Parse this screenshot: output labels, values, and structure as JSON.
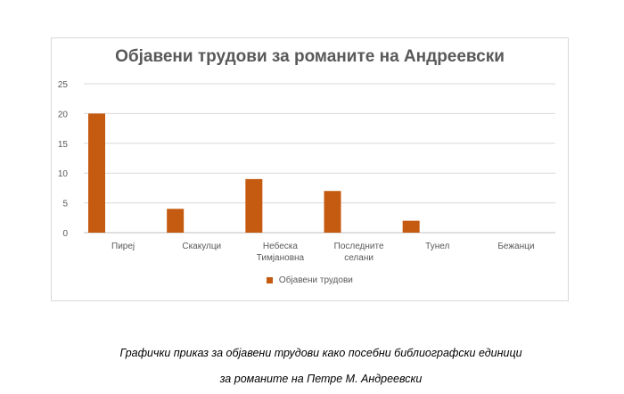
{
  "chart_data": {
    "type": "bar",
    "title": "Објавени трудови за романите на Андреевски",
    "categories": [
      [
        "Пирej"
      ],
      [
        "Скакулци"
      ],
      [
        "Небеска",
        "Тимјановна"
      ],
      [
        "Последните",
        "селани"
      ],
      [
        "Тунел"
      ],
      [
        "Бежанци"
      ]
    ],
    "series": [
      {
        "name": "Објавени трудови",
        "values": [
          20,
          4,
          9,
          7,
          2,
          0
        ]
      }
    ],
    "ylim": [
      0,
      25
    ],
    "yticks": [
      0,
      5,
      10,
      15,
      20,
      25
    ],
    "grid": true,
    "legend": "bottom",
    "bar_color": "#c55a11"
  },
  "caption": {
    "line1": "Графички приказ за објавени трудови како посебни библиографски единици",
    "line2": "за романите на Петре М. Андреевски"
  }
}
